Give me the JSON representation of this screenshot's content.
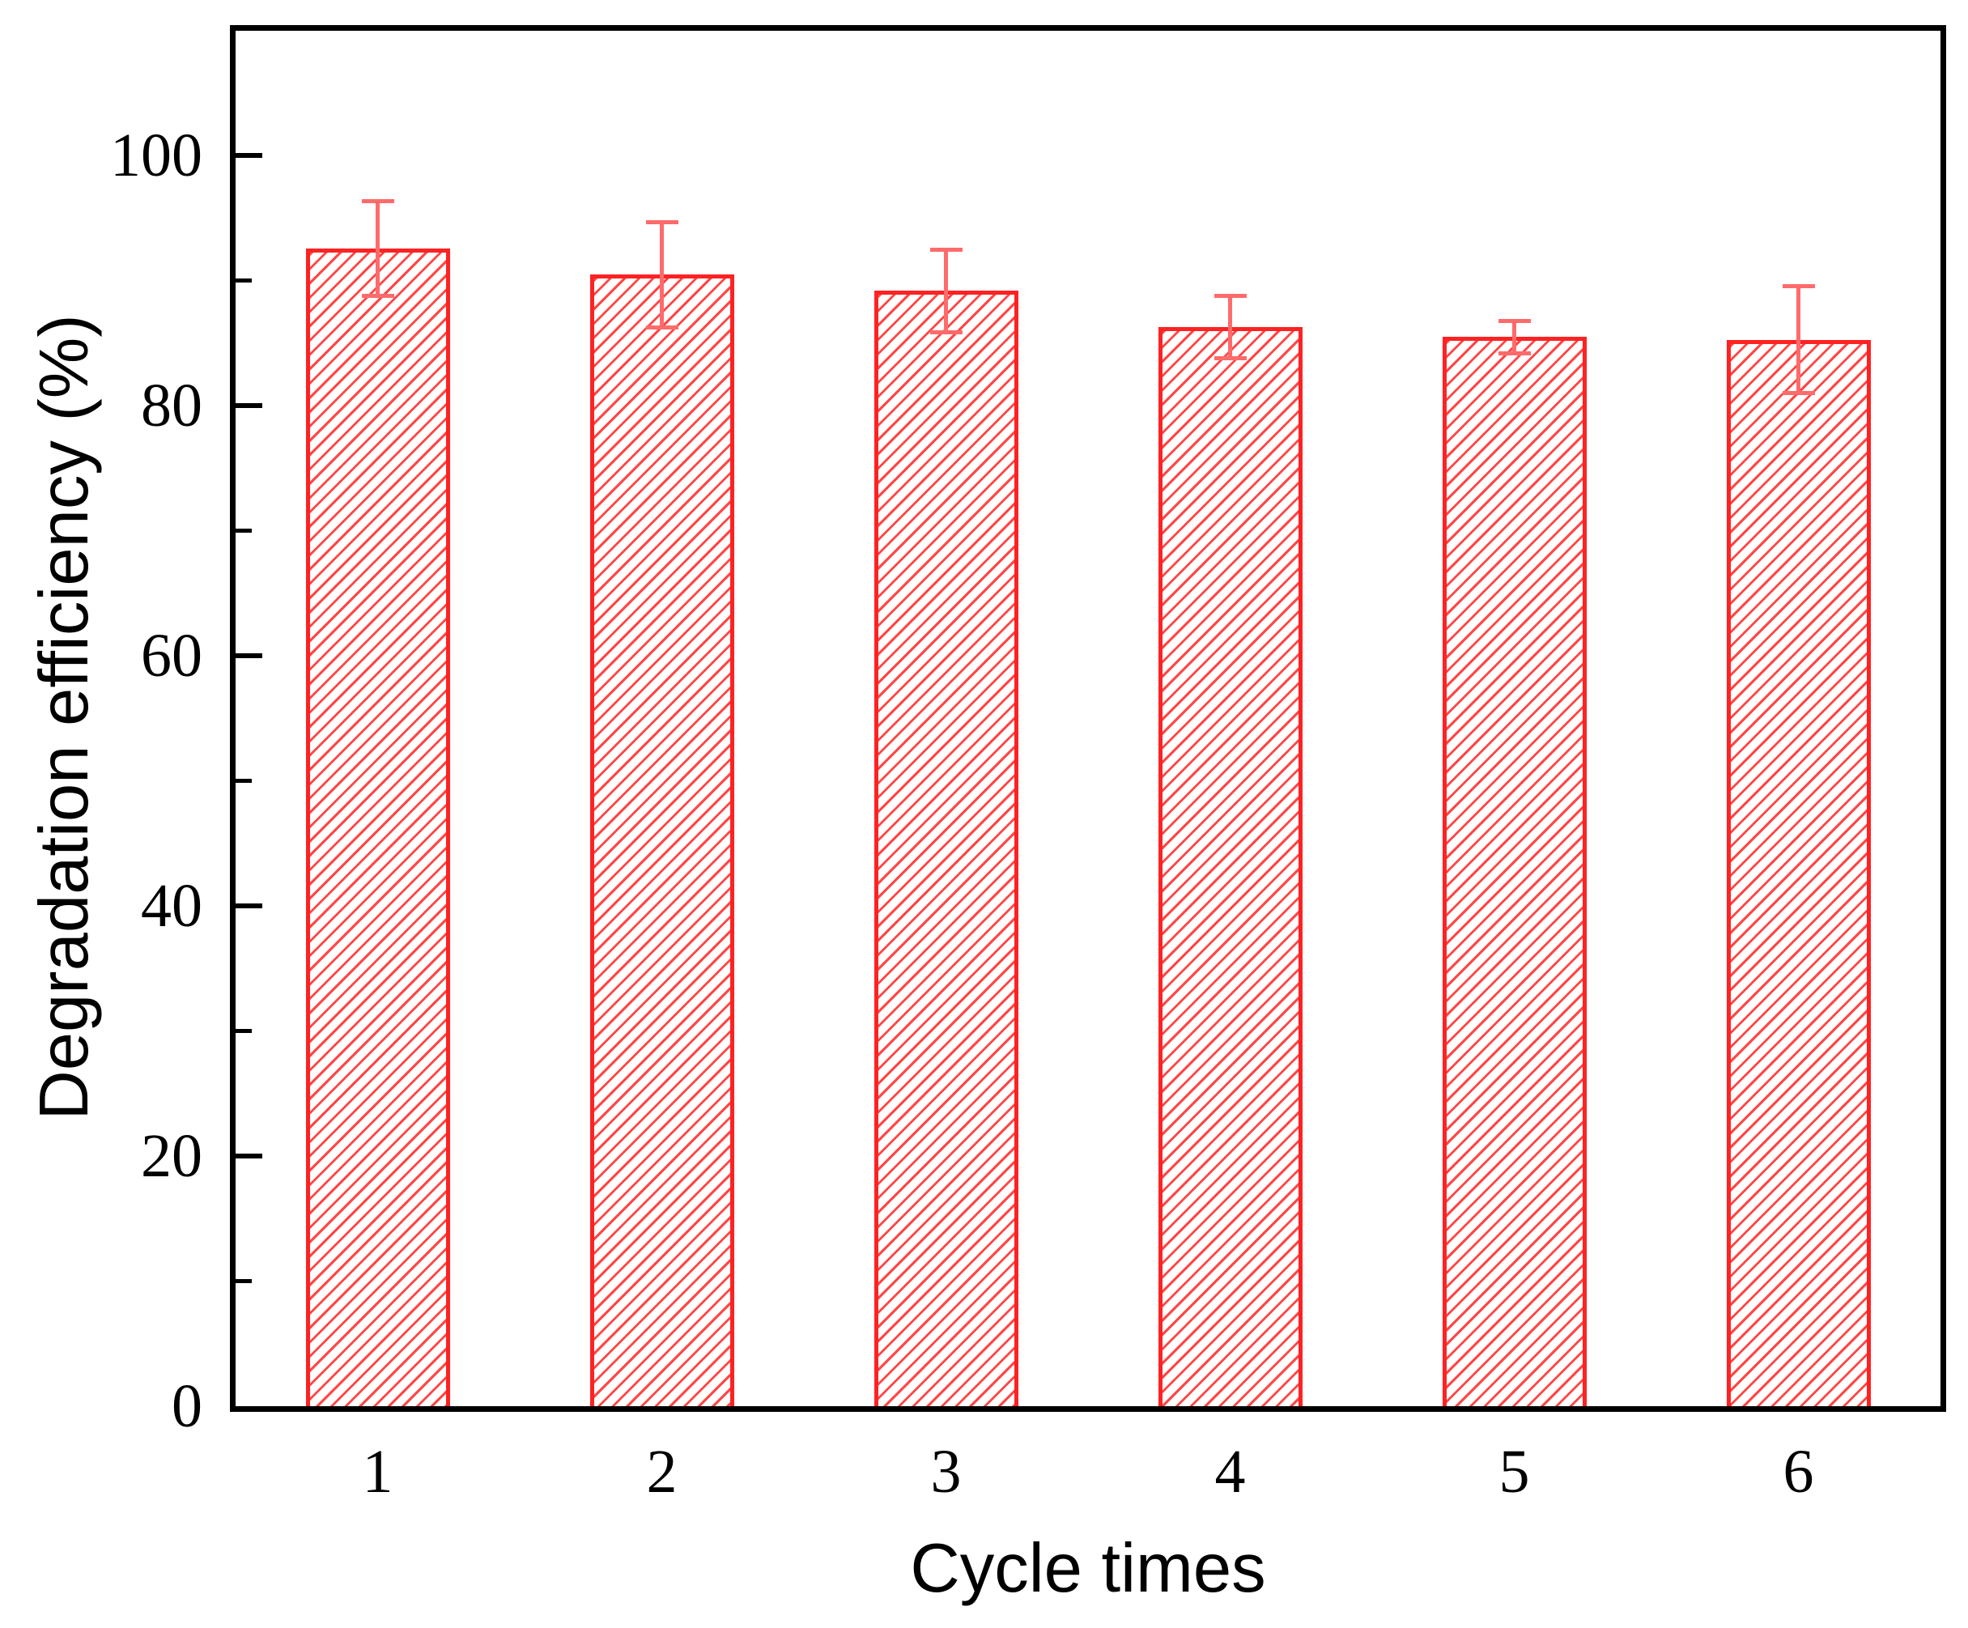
{
  "chart_data": {
    "type": "bar",
    "title": "",
    "xlabel": "Cycle times",
    "ylabel": "Degradation efficiency (%)",
    "categories": [
      "1",
      "2",
      "3",
      "4",
      "5",
      "6"
    ],
    "series": [
      {
        "name": "Degradation efficiency",
        "values": [
          92.6,
          90.5,
          89.2,
          86.3,
          85.5,
          85.3
        ],
        "errors": [
          3.8,
          4.2,
          3.3,
          2.5,
          1.3,
          4.3
        ]
      }
    ],
    "ylim": [
      0,
      110
    ],
    "yticks_major": [
      0,
      20,
      40,
      60,
      80,
      100
    ],
    "yticks_minor": [
      10,
      30,
      50,
      70,
      90
    ],
    "grid": false,
    "legend": null,
    "bar_style": "diagonal-hatch",
    "frame": "full-box"
  },
  "style": {
    "bar_edge_color": "#ff2222",
    "hatch_color": "#ff4646",
    "error_bar_color": "#ff6b6b",
    "axis_color": "#000000",
    "background_color": "#ffffff"
  }
}
